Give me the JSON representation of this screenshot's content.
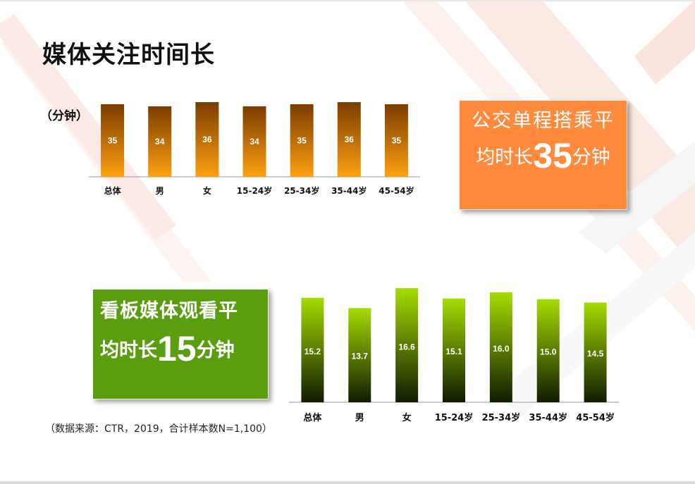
{
  "slide": {
    "title": "媒体关注时间长",
    "unit": "（分钟）",
    "source_note": "（数据来源：CTR，2019，合计样本数N=1,100）"
  },
  "callouts": {
    "bus": {
      "line1": "公交单程搭乘平",
      "line2_prefix": "均时长",
      "value": "35",
      "line2_suffix": "分钟",
      "color": "#ff8a3c"
    },
    "board": {
      "line1": "看板媒体观看平",
      "line2_prefix": "均时长",
      "value": "15",
      "line2_suffix": "分钟",
      "color": "#5a9e10"
    }
  },
  "colors": {
    "orange_top": "#7a3c00",
    "orange_bottom": "#ffa010",
    "green_top": "#a6dc00",
    "green_bottom": "#101c00"
  },
  "chart_data": [
    {
      "type": "bar",
      "title": "",
      "categories": [
        "总体",
        "男",
        "女",
        "15-24岁",
        "25-34岁",
        "35-44岁",
        "45-54岁"
      ],
      "values": [
        35,
        34,
        36,
        34,
        35,
        36,
        35
      ],
      "value_labels": [
        "35",
        "34",
        "36",
        "34",
        "35",
        "36",
        "35"
      ],
      "ylabel": "（分钟）",
      "ylim": [
        0,
        36
      ],
      "grid": false,
      "legend": "none"
    },
    {
      "type": "bar",
      "title": "",
      "categories": [
        "总体",
        "男",
        "女",
        "15-24岁",
        "25-34岁",
        "35-44岁",
        "45-54岁"
      ],
      "values": [
        15.2,
        13.7,
        16.6,
        15.1,
        16.0,
        15.0,
        14.5
      ],
      "value_labels": [
        "15.2",
        "13.7",
        "16.6",
        "15.1",
        "16.0",
        "15.0",
        "14.5"
      ],
      "ylabel": "",
      "ylim": [
        0,
        16.6
      ],
      "grid": false,
      "legend": "none"
    }
  ]
}
